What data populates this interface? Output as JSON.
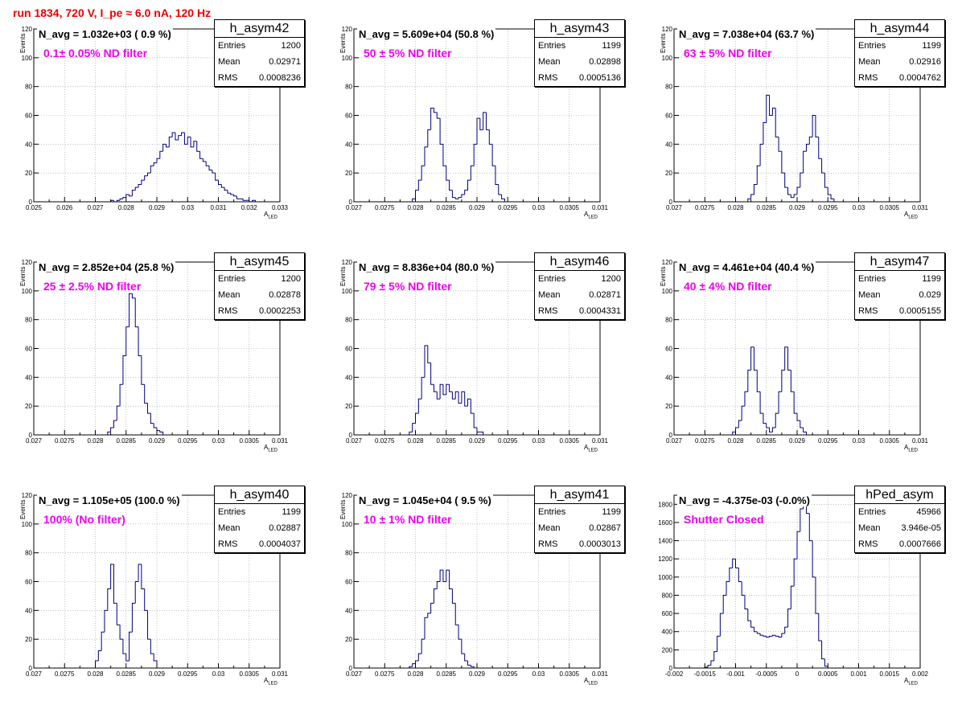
{
  "header": {
    "title": "run 1834,   720 V, I_pe ≈ 6.0 nA, 120 Hz"
  },
  "colors": {
    "histogram": "#00007f",
    "filter_text": "#ee00ee",
    "title_text": "#ee0000",
    "grid": "#999999"
  },
  "chart_data": [
    {
      "type": "histogram",
      "name": "h_asym42",
      "stats": {
        "entries": "1200",
        "mean": "0.02971",
        "rms": "0.0008236"
      },
      "navg": "N_avg = 1.032e+03 ( 0.9 %)",
      "filter": "0.1± 0.05% ND filter",
      "xlabel": "A",
      "xlabel_sub": "LED",
      "ylabel": "Events",
      "grid": true,
      "xlim": [
        0.025,
        0.033
      ],
      "ylim": [
        0,
        120
      ],
      "xticks": [
        "0.025",
        "0.026",
        "0.027",
        "0.028",
        "0.029",
        "0.03",
        "0.031",
        "0.032",
        "0.033"
      ],
      "yticks": [
        "0",
        "20",
        "40",
        "60",
        "80",
        "100",
        "120"
      ],
      "bins": {
        "start": 0.0275,
        "width": 0.0001,
        "values": [
          1,
          0,
          1,
          2,
          3,
          5,
          4,
          8,
          10,
          12,
          15,
          18,
          20,
          25,
          27,
          30,
          35,
          40,
          38,
          45,
          48,
          43,
          46,
          48,
          40,
          45,
          38,
          42,
          35,
          30,
          28,
          25,
          22,
          20,
          15,
          12,
          10,
          8,
          6,
          5,
          4,
          2,
          2,
          1,
          1,
          0,
          1
        ]
      }
    },
    {
      "type": "histogram",
      "name": "h_asym43",
      "stats": {
        "entries": "1199",
        "mean": "0.02898",
        "rms": "0.0005136"
      },
      "navg": "N_avg = 5.609e+04 (50.8 %)",
      "filter": "50 ± 5% ND filter",
      "xlabel": "A",
      "xlabel_sub": "LED",
      "ylabel": "Events",
      "grid": true,
      "xlim": [
        0.027,
        0.031
      ],
      "ylim": [
        0,
        120
      ],
      "xticks": [
        "0.027",
        "0.0275",
        "0.028",
        "0.0285",
        "0.029",
        "0.0295",
        "0.03",
        "0.0305",
        "0.031"
      ],
      "yticks": [
        "0",
        "20",
        "40",
        "60",
        "80",
        "100",
        "120"
      ],
      "bins": {
        "start": 0.02795,
        "width": 5e-05,
        "values": [
          2,
          8,
          15,
          25,
          38,
          50,
          65,
          62,
          58,
          40,
          25,
          15,
          8,
          3,
          2,
          3,
          5,
          8,
          15,
          25,
          40,
          58,
          50,
          62,
          50,
          40,
          25,
          12,
          5,
          2
        ]
      }
    },
    {
      "type": "histogram",
      "name": "h_asym44",
      "stats": {
        "entries": "1199",
        "mean": "0.02916",
        "rms": "0.0004762"
      },
      "navg": "N_avg = 7.038e+04 (63.7 %)",
      "filter": "63 ± 5% ND filter",
      "xlabel": "A",
      "xlabel_sub": "LED",
      "ylabel": "Events",
      "grid": true,
      "xlim": [
        0.027,
        0.031
      ],
      "ylim": [
        0,
        120
      ],
      "xticks": [
        "0.027",
        "0.0275",
        "0.028",
        "0.0285",
        "0.029",
        "0.0295",
        "0.03",
        "0.0305",
        "0.031"
      ],
      "yticks": [
        "0",
        "20",
        "40",
        "60",
        "80",
        "100",
        "120"
      ],
      "bins": {
        "start": 0.0282,
        "width": 5e-05,
        "values": [
          2,
          5,
          12,
          25,
          40,
          55,
          74,
          60,
          65,
          45,
          35,
          20,
          10,
          5,
          3,
          5,
          10,
          20,
          35,
          40,
          45,
          60,
          45,
          30,
          20,
          10,
          5,
          2
        ]
      }
    },
    {
      "type": "histogram",
      "name": "h_asym45",
      "stats": {
        "entries": "1200",
        "mean": "0.02878",
        "rms": "0.0002253"
      },
      "navg": "N_avg = 2.852e+04 (25.8 %)",
      "filter": "25 ± 2.5% ND filter",
      "xlabel": "A",
      "xlabel_sub": "LED",
      "ylabel": "Events",
      "grid": true,
      "xlim": [
        0.027,
        0.031
      ],
      "ylim": [
        0,
        120
      ],
      "xticks": [
        "0.027",
        "0.0275",
        "0.028",
        "0.0285",
        "0.029",
        "0.0295",
        "0.03",
        "0.0305",
        "0.031"
      ],
      "yticks": [
        "0",
        "20",
        "40",
        "60",
        "80",
        "100",
        "120"
      ],
      "bins": {
        "start": 0.0282,
        "width": 5e-05,
        "values": [
          2,
          5,
          10,
          20,
          35,
          55,
          75,
          98,
          95,
          75,
          55,
          35,
          22,
          15,
          8,
          5,
          3,
          2
        ]
      }
    },
    {
      "type": "histogram",
      "name": "h_asym46",
      "stats": {
        "entries": "1200",
        "mean": "0.02871",
        "rms": "0.0004331"
      },
      "navg": "N_avg = 8.836e+04 (80.0 %)",
      "filter": "79 ± 5% ND filter",
      "xlabel": "A",
      "xlabel_sub": "LED",
      "ylabel": "Events",
      "grid": true,
      "xlim": [
        0.027,
        0.031
      ],
      "ylim": [
        0,
        120
      ],
      "xticks": [
        "0.027",
        "0.0275",
        "0.028",
        "0.0285",
        "0.029",
        "0.0295",
        "0.03",
        "0.0305",
        "0.031"
      ],
      "yticks": [
        "0",
        "20",
        "40",
        "60",
        "80",
        "100",
        "120"
      ],
      "bins": {
        "start": 0.0279,
        "width": 5e-05,
        "values": [
          2,
          8,
          15,
          25,
          40,
          62,
          50,
          35,
          30,
          25,
          35,
          28,
          35,
          30,
          25,
          30,
          22,
          30,
          20,
          25,
          15,
          5,
          2,
          2
        ]
      }
    },
    {
      "type": "histogram",
      "name": "h_asym47",
      "stats": {
        "entries": "1199",
        "mean": "0.029",
        "rms": "0.0005155"
      },
      "navg": "N_avg = 4.461e+04 (40.4 %)",
      "filter": "40 ± 4% ND filter",
      "xlabel": "A",
      "xlabel_sub": "LED",
      "ylabel": "Events",
      "grid": true,
      "xlim": [
        0.027,
        0.031
      ],
      "ylim": [
        0,
        120
      ],
      "xticks": [
        "0.027",
        "0.0275",
        "0.028",
        "0.0285",
        "0.029",
        "0.0295",
        "0.03",
        "0.0305",
        "0.031"
      ],
      "yticks": [
        "0",
        "20",
        "40",
        "60",
        "80",
        "100",
        "120"
      ],
      "bins": {
        "start": 0.02795,
        "width": 5e-05,
        "values": [
          2,
          5,
          10,
          20,
          30,
          45,
          61,
          45,
          30,
          15,
          8,
          5,
          2,
          5,
          15,
          30,
          45,
          61,
          45,
          30,
          15,
          10,
          5,
          2
        ]
      }
    },
    {
      "type": "histogram",
      "name": "h_asym40",
      "stats": {
        "entries": "1199",
        "mean": "0.02887",
        "rms": "0.0004037"
      },
      "navg": "N_avg = 1.105e+05 (100.0 %)",
      "filter": "100% (No filter)",
      "xlabel": "A",
      "xlabel_sub": "LED",
      "ylabel": "Events",
      "grid": true,
      "xlim": [
        0.027,
        0.031
      ],
      "ylim": [
        0,
        120
      ],
      "xticks": [
        "0.027",
        "0.0275",
        "0.028",
        "0.0285",
        "0.029",
        "0.0295",
        "0.03",
        "0.0305",
        "0.031"
      ],
      "yticks": [
        "0",
        "20",
        "40",
        "60",
        "80",
        "100",
        "120"
      ],
      "bins": {
        "start": 0.028,
        "width": 5e-05,
        "values": [
          5,
          12,
          25,
          40,
          55,
          72,
          45,
          30,
          20,
          10,
          5,
          25,
          45,
          60,
          72,
          55,
          40,
          20,
          10,
          5
        ]
      }
    },
    {
      "type": "histogram",
      "name": "h_asym41",
      "stats": {
        "entries": "1199",
        "mean": "0.02867",
        "rms": "0.0003013"
      },
      "navg": "N_avg = 1.045e+04 ( 9.5 %)",
      "filter": "10 ± 1% ND filter",
      "xlabel": "A",
      "xlabel_sub": "LED",
      "ylabel": "Events",
      "grid": true,
      "xlim": [
        0.027,
        0.031
      ],
      "ylim": [
        0,
        120
      ],
      "xticks": [
        "0.027",
        "0.0275",
        "0.028",
        "0.0285",
        "0.029",
        "0.0295",
        "0.03",
        "0.0305",
        "0.031"
      ],
      "yticks": [
        "0",
        "20",
        "40",
        "60",
        "80",
        "100",
        "120"
      ],
      "bins": {
        "start": 0.0279,
        "width": 5e-05,
        "values": [
          1,
          3,
          5,
          10,
          20,
          35,
          38,
          45,
          55,
          60,
          68,
          60,
          68,
          55,
          45,
          30,
          20,
          10,
          5,
          2,
          1
        ]
      }
    },
    {
      "type": "histogram",
      "name": "hPed_asym",
      "stats": {
        "entries": "45966",
        "mean": "3.946e-05",
        "rms": "0.0007666"
      },
      "navg": "N_avg = -4.375e-03 (-0.0%)",
      "filter": "Shutter Closed",
      "xlabel": "A",
      "xlabel_sub": "LED",
      "ylabel": "",
      "grid": true,
      "xlim": [
        -0.002,
        0.002
      ],
      "ylim": [
        0,
        1900
      ],
      "xticks": [
        "-0.002",
        "-0.0015",
        "-0.001",
        "-0.0005",
        "0",
        "0.0005",
        "0.001",
        "0.0015",
        "0.002"
      ],
      "yticks": [
        "0",
        "200",
        "400",
        "600",
        "800",
        "1000",
        "1200",
        "1400",
        "1600",
        "1800"
      ],
      "bins": {
        "start": -0.0015,
        "width": 5e-05,
        "values": [
          10,
          30,
          80,
          180,
          350,
          600,
          800,
          950,
          1100,
          1200,
          1100,
          950,
          800,
          650,
          520,
          450,
          400,
          380,
          360,
          350,
          340,
          350,
          360,
          350,
          340,
          380,
          450,
          650,
          900,
          1200,
          1500,
          1750,
          1850,
          1700,
          1400,
          1000,
          600,
          300,
          100,
          20
        ]
      }
    }
  ]
}
